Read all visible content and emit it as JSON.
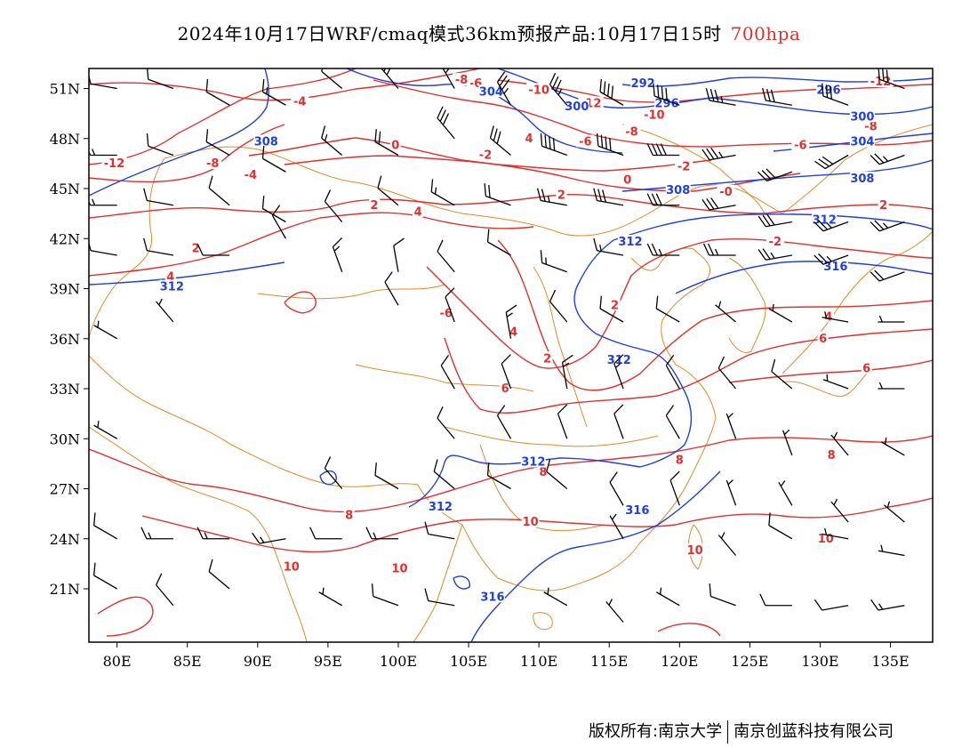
{
  "title": {
    "main": "2024年10月17日WRF/cmaq模式36km预报产品:10月17日15时",
    "level": "700hpa"
  },
  "axes": {
    "lat_labels": [
      "51N",
      "48N",
      "45N",
      "42N",
      "39N",
      "36N",
      "33N",
      "30N",
      "27N",
      "24N",
      "21N"
    ],
    "lat_values": [
      51,
      48,
      45,
      42,
      39,
      36,
      33,
      30,
      27,
      24,
      21
    ],
    "lon_labels": [
      "80E",
      "85E",
      "90E",
      "95E",
      "100E",
      "105E",
      "110E",
      "115E",
      "120E",
      "125E",
      "130E",
      "135E"
    ],
    "lon_values": [
      80,
      85,
      90,
      95,
      100,
      105,
      110,
      115,
      120,
      125,
      130,
      135
    ],
    "lon_range": [
      78,
      138
    ],
    "lat_range": [
      17.8,
      52.2
    ]
  },
  "colors": {
    "temperature_contour": "#e0302e",
    "height_contour": "#1f3fe0",
    "boundary": "#e08a2a",
    "wind_barb": "#000000",
    "level_text": "#e0302e"
  },
  "temperature_labels": [
    {
      "text": "-12",
      "lon": 79.8,
      "lat": 46.5
    },
    {
      "text": "-8",
      "lon": 86.8,
      "lat": 46.5
    },
    {
      "text": "-4",
      "lon": 93.0,
      "lat": 50.2
    },
    {
      "text": "-4",
      "lon": 89.5,
      "lat": 45.8
    },
    {
      "text": "0",
      "lon": 99.8,
      "lat": 47.6
    },
    {
      "text": "-2",
      "lon": 106.2,
      "lat": 47.0
    },
    {
      "text": "4",
      "lon": 109.3,
      "lat": 48.0
    },
    {
      "text": "-6",
      "lon": 105.5,
      "lat": 51.3
    },
    {
      "text": "-8",
      "lon": 104.5,
      "lat": 51.5
    },
    {
      "text": "-10",
      "lon": 110.0,
      "lat": 50.9
    },
    {
      "text": "-12",
      "lon": 113.7,
      "lat": 50.1
    },
    {
      "text": "-10",
      "lon": 118.2,
      "lat": 49.4
    },
    {
      "text": "-8",
      "lon": 116.6,
      "lat": 48.4
    },
    {
      "text": "-6",
      "lon": 113.3,
      "lat": 47.8
    },
    {
      "text": "-2",
      "lon": 120.3,
      "lat": 46.3
    },
    {
      "text": "0",
      "lon": 116.3,
      "lat": 45.5
    },
    {
      "text": "-0",
      "lon": 123.3,
      "lat": 44.8
    },
    {
      "text": "-6",
      "lon": 128.6,
      "lat": 47.6
    },
    {
      "text": "-8",
      "lon": 133.6,
      "lat": 48.7
    },
    {
      "text": "-12",
      "lon": 134.3,
      "lat": 51.4
    },
    {
      "text": "2",
      "lon": 98.3,
      "lat": 44.0
    },
    {
      "text": "4",
      "lon": 101.4,
      "lat": 43.6
    },
    {
      "text": "2",
      "lon": 111.6,
      "lat": 44.6
    },
    {
      "text": "2",
      "lon": 85.6,
      "lat": 41.4
    },
    {
      "text": "4",
      "lon": 83.8,
      "lat": 39.7
    },
    {
      "text": "-2",
      "lon": 126.8,
      "lat": 41.8
    },
    {
      "text": "2",
      "lon": 134.5,
      "lat": 44.0
    },
    {
      "text": "-6",
      "lon": 103.4,
      "lat": 37.5
    },
    {
      "text": "4",
      "lon": 108.2,
      "lat": 36.4
    },
    {
      "text": "2",
      "lon": 115.4,
      "lat": 38.0
    },
    {
      "text": "2",
      "lon": 110.6,
      "lat": 34.8
    },
    {
      "text": "6",
      "lon": 107.6,
      "lat": 33.0
    },
    {
      "text": "4",
      "lon": 130.6,
      "lat": 37.3
    },
    {
      "text": "6",
      "lon": 130.2,
      "lat": 36.0
    },
    {
      "text": "6",
      "lon": 133.3,
      "lat": 34.2
    },
    {
      "text": "8",
      "lon": 110.3,
      "lat": 28.0
    },
    {
      "text": "8",
      "lon": 120.0,
      "lat": 28.7
    },
    {
      "text": "8",
      "lon": 130.8,
      "lat": 29.0
    },
    {
      "text": "8",
      "lon": 96.5,
      "lat": 25.4
    },
    {
      "text": "10",
      "lon": 109.4,
      "lat": 25.0
    },
    {
      "text": "10",
      "lon": 121.1,
      "lat": 23.3
    },
    {
      "text": "10",
      "lon": 130.4,
      "lat": 24.0
    },
    {
      "text": "10",
      "lon": 92.4,
      "lat": 22.3
    },
    {
      "text": "10",
      "lon": 100.1,
      "lat": 22.2
    }
  ],
  "height_labels": [
    {
      "text": "308",
      "lon": 90.6,
      "lat": 47.8
    },
    {
      "text": "304",
      "lon": 106.6,
      "lat": 50.8
    },
    {
      "text": "300",
      "lon": 112.7,
      "lat": 49.9
    },
    {
      "text": "292",
      "lon": 117.4,
      "lat": 51.3
    },
    {
      "text": "296",
      "lon": 119.1,
      "lat": 50.1
    },
    {
      "text": "296",
      "lon": 130.6,
      "lat": 50.9
    },
    {
      "text": "300",
      "lon": 133.0,
      "lat": 49.3
    },
    {
      "text": "304",
      "lon": 133.0,
      "lat": 47.8
    },
    {
      "text": "308",
      "lon": 133.0,
      "lat": 45.6
    },
    {
      "text": "308",
      "lon": 119.9,
      "lat": 44.9
    },
    {
      "text": "312",
      "lon": 130.3,
      "lat": 43.1
    },
    {
      "text": "312",
      "lon": 116.5,
      "lat": 41.8
    },
    {
      "text": "316",
      "lon": 131.1,
      "lat": 40.3
    },
    {
      "text": "312",
      "lon": 83.9,
      "lat": 39.1
    },
    {
      "text": "312",
      "lon": 115.7,
      "lat": 34.7
    },
    {
      "text": "312",
      "lon": 109.6,
      "lat": 28.6
    },
    {
      "text": "312",
      "lon": 103.0,
      "lat": 25.9
    },
    {
      "text": "316",
      "lon": 117.0,
      "lat": 25.7
    },
    {
      "text": "316",
      "lon": 106.7,
      "lat": 20.5
    }
  ],
  "wind_barbs": [
    {
      "lon": 80,
      "lat": 51,
      "dir": 280,
      "spd": 10
    },
    {
      "lon": 84,
      "lat": 51,
      "dir": 290,
      "spd": 10
    },
    {
      "lon": 88,
      "lat": 50,
      "dir": 300,
      "spd": 10
    },
    {
      "lon": 92,
      "lat": 50,
      "dir": 300,
      "spd": 15
    },
    {
      "lon": 96,
      "lat": 51,
      "dir": 310,
      "spd": 10
    },
    {
      "lon": 100,
      "lat": 51,
      "dir": 320,
      "spd": 25
    },
    {
      "lon": 104,
      "lat": 51,
      "dir": 330,
      "spd": 30
    },
    {
      "lon": 108,
      "lat": 50,
      "dir": 330,
      "spd": 35
    },
    {
      "lon": 112,
      "lat": 50,
      "dir": 320,
      "spd": 35
    },
    {
      "lon": 116,
      "lat": 50,
      "dir": 300,
      "spd": 40
    },
    {
      "lon": 120,
      "lat": 50,
      "dir": 290,
      "spd": 40
    },
    {
      "lon": 124,
      "lat": 50,
      "dir": 280,
      "spd": 35
    },
    {
      "lon": 128,
      "lat": 50,
      "dir": 280,
      "spd": 30
    },
    {
      "lon": 132,
      "lat": 50,
      "dir": 290,
      "spd": 30
    },
    {
      "lon": 136,
      "lat": 51,
      "dir": 290,
      "spd": 30
    },
    {
      "lon": 80,
      "lat": 47,
      "dir": 270,
      "spd": 15
    },
    {
      "lon": 84,
      "lat": 47,
      "dir": 290,
      "spd": 10
    },
    {
      "lon": 88,
      "lat": 47,
      "dir": 300,
      "spd": 10
    },
    {
      "lon": 92,
      "lat": 46,
      "dir": 300,
      "spd": 10
    },
    {
      "lon": 96,
      "lat": 47,
      "dir": 310,
      "spd": 15
    },
    {
      "lon": 100,
      "lat": 47,
      "dir": 300,
      "spd": 20
    },
    {
      "lon": 104,
      "lat": 48,
      "dir": 320,
      "spd": 30
    },
    {
      "lon": 108,
      "lat": 47,
      "dir": 310,
      "spd": 30
    },
    {
      "lon": 112,
      "lat": 47,
      "dir": 290,
      "spd": 40
    },
    {
      "lon": 116,
      "lat": 47,
      "dir": 290,
      "spd": 40
    },
    {
      "lon": 120,
      "lat": 47,
      "dir": 270,
      "spd": 40
    },
    {
      "lon": 124,
      "lat": 47,
      "dir": 260,
      "spd": 35
    },
    {
      "lon": 128,
      "lat": 46,
      "dir": 250,
      "spd": 30
    },
    {
      "lon": 132,
      "lat": 47,
      "dir": 240,
      "spd": 30
    },
    {
      "lon": 136,
      "lat": 47,
      "dir": 250,
      "spd": 25
    },
    {
      "lon": 80,
      "lat": 44,
      "dir": 270,
      "spd": 15
    },
    {
      "lon": 84,
      "lat": 44,
      "dir": 280,
      "spd": 10
    },
    {
      "lon": 88,
      "lat": 44,
      "dir": 310,
      "spd": 10
    },
    {
      "lon": 92,
      "lat": 43,
      "dir": 300,
      "spd": 10
    },
    {
      "lon": 96,
      "lat": 43,
      "dir": 320,
      "spd": 10
    },
    {
      "lon": 100,
      "lat": 44,
      "dir": 310,
      "spd": 10
    },
    {
      "lon": 104,
      "lat": 44,
      "dir": 300,
      "spd": 15
    },
    {
      "lon": 108,
      "lat": 44,
      "dir": 290,
      "spd": 20
    },
    {
      "lon": 112,
      "lat": 44,
      "dir": 280,
      "spd": 25
    },
    {
      "lon": 116,
      "lat": 44,
      "dir": 280,
      "spd": 30
    },
    {
      "lon": 120,
      "lat": 44,
      "dir": 270,
      "spd": 30
    },
    {
      "lon": 124,
      "lat": 44,
      "dir": 260,
      "spd": 30
    },
    {
      "lon": 128,
      "lat": 43,
      "dir": 260,
      "spd": 30
    },
    {
      "lon": 132,
      "lat": 43,
      "dir": 250,
      "spd": 25
    },
    {
      "lon": 136,
      "lat": 43,
      "dir": 250,
      "spd": 25
    },
    {
      "lon": 80,
      "lat": 41,
      "dir": 280,
      "spd": 10
    },
    {
      "lon": 84,
      "lat": 41,
      "dir": 280,
      "spd": 10
    },
    {
      "lon": 88,
      "lat": 41,
      "dir": 270,
      "spd": 10
    },
    {
      "lon": 92,
      "lat": 42,
      "dir": 330,
      "spd": 10
    },
    {
      "lon": 96,
      "lat": 40,
      "dir": 340,
      "spd": 15
    },
    {
      "lon": 100,
      "lat": 40,
      "dir": 350,
      "spd": 10
    },
    {
      "lon": 104,
      "lat": 40,
      "dir": 320,
      "spd": 10
    },
    {
      "lon": 108,
      "lat": 41,
      "dir": 300,
      "spd": 10
    },
    {
      "lon": 112,
      "lat": 40,
      "dir": 290,
      "spd": 15
    },
    {
      "lon": 116,
      "lat": 41,
      "dir": 280,
      "spd": 15
    },
    {
      "lon": 120,
      "lat": 41,
      "dir": 270,
      "spd": 25
    },
    {
      "lon": 124,
      "lat": 41,
      "dir": 270,
      "spd": 25
    },
    {
      "lon": 128,
      "lat": 41,
      "dir": 260,
      "spd": 25
    },
    {
      "lon": 132,
      "lat": 41,
      "dir": 250,
      "spd": 25
    },
    {
      "lon": 136,
      "lat": 40,
      "dir": 250,
      "spd": 20
    },
    {
      "lon": 80,
      "lat": 36,
      "dir": 300,
      "spd": 5
    },
    {
      "lon": 84,
      "lat": 37,
      "dir": 320,
      "spd": 5
    },
    {
      "lon": 100,
      "lat": 38,
      "dir": 330,
      "spd": 10
    },
    {
      "lon": 104,
      "lat": 37,
      "dir": 340,
      "spd": 10
    },
    {
      "lon": 108,
      "lat": 36,
      "dir": 350,
      "spd": 15
    },
    {
      "lon": 112,
      "lat": 37,
      "dir": 320,
      "spd": 10
    },
    {
      "lon": 116,
      "lat": 37,
      "dir": 300,
      "spd": 10
    },
    {
      "lon": 120,
      "lat": 37,
      "dir": 300,
      "spd": 10
    },
    {
      "lon": 124,
      "lat": 37,
      "dir": 310,
      "spd": 5
    },
    {
      "lon": 128,
      "lat": 37,
      "dir": 300,
      "spd": 5
    },
    {
      "lon": 132,
      "lat": 37,
      "dir": 280,
      "spd": 5
    },
    {
      "lon": 136,
      "lat": 37,
      "dir": 270,
      "spd": 5
    },
    {
      "lon": 104,
      "lat": 33,
      "dir": 330,
      "spd": 10
    },
    {
      "lon": 108,
      "lat": 33,
      "dir": 340,
      "spd": 10
    },
    {
      "lon": 112,
      "lat": 33,
      "dir": 350,
      "spd": 15
    },
    {
      "lon": 116,
      "lat": 33,
      "dir": 340,
      "spd": 15
    },
    {
      "lon": 120,
      "lat": 33,
      "dir": 330,
      "spd": 10
    },
    {
      "lon": 124,
      "lat": 33,
      "dir": 320,
      "spd": 10
    },
    {
      "lon": 128,
      "lat": 33,
      "dir": 310,
      "spd": 10
    },
    {
      "lon": 132,
      "lat": 33,
      "dir": 290,
      "spd": 5
    },
    {
      "lon": 136,
      "lat": 33,
      "dir": 270,
      "spd": 5
    },
    {
      "lon": 80,
      "lat": 30,
      "dir": 300,
      "spd": 5
    },
    {
      "lon": 104,
      "lat": 30,
      "dir": 320,
      "spd": 10
    },
    {
      "lon": 108,
      "lat": 30,
      "dir": 330,
      "spd": 10
    },
    {
      "lon": 112,
      "lat": 30,
      "dir": 340,
      "spd": 10
    },
    {
      "lon": 116,
      "lat": 30,
      "dir": 340,
      "spd": 10
    },
    {
      "lon": 120,
      "lat": 30,
      "dir": 330,
      "spd": 10
    },
    {
      "lon": 124,
      "lat": 30,
      "dir": 340,
      "spd": 5
    },
    {
      "lon": 128,
      "lat": 29,
      "dir": 340,
      "spd": 5
    },
    {
      "lon": 132,
      "lat": 29,
      "dir": 320,
      "spd": 5
    },
    {
      "lon": 136,
      "lat": 29,
      "dir": 300,
      "spd": 5
    },
    {
      "lon": 96,
      "lat": 27,
      "dir": 320,
      "spd": 10
    },
    {
      "lon": 100,
      "lat": 27,
      "dir": 300,
      "spd": 10
    },
    {
      "lon": 104,
      "lat": 27,
      "dir": 310,
      "spd": 10
    },
    {
      "lon": 108,
      "lat": 27,
      "dir": 300,
      "spd": 10
    },
    {
      "lon": 112,
      "lat": 27,
      "dir": 310,
      "spd": 10
    },
    {
      "lon": 116,
      "lat": 26,
      "dir": 330,
      "spd": 10
    },
    {
      "lon": 120,
      "lat": 26,
      "dir": 340,
      "spd": 10
    },
    {
      "lon": 124,
      "lat": 26,
      "dir": 340,
      "spd": 5
    },
    {
      "lon": 128,
      "lat": 26,
      "dir": 330,
      "spd": 5
    },
    {
      "lon": 132,
      "lat": 25,
      "dir": 320,
      "spd": 5
    },
    {
      "lon": 136,
      "lat": 25,
      "dir": 310,
      "spd": 5
    },
    {
      "lon": 80,
      "lat": 24,
      "dir": 300,
      "spd": 10
    },
    {
      "lon": 84,
      "lat": 24,
      "dir": 270,
      "spd": 15
    },
    {
      "lon": 88,
      "lat": 24,
      "dir": 270,
      "spd": 15
    },
    {
      "lon": 92,
      "lat": 24,
      "dir": 260,
      "spd": 15
    },
    {
      "lon": 96,
      "lat": 24,
      "dir": 270,
      "spd": 10
    },
    {
      "lon": 100,
      "lat": 24,
      "dir": 270,
      "spd": 15
    },
    {
      "lon": 104,
      "lat": 24,
      "dir": 280,
      "spd": 10
    },
    {
      "lon": 116,
      "lat": 24,
      "dir": 330,
      "spd": 5
    },
    {
      "lon": 124,
      "lat": 23,
      "dir": 320,
      "spd": 5
    },
    {
      "lon": 128,
      "lat": 24,
      "dir": 300,
      "spd": 10
    },
    {
      "lon": 132,
      "lat": 24,
      "dir": 280,
      "spd": 5
    },
    {
      "lon": 136,
      "lat": 23,
      "dir": 280,
      "spd": 5
    },
    {
      "lon": 80,
      "lat": 21,
      "dir": 300,
      "spd": 10
    },
    {
      "lon": 84,
      "lat": 20,
      "dir": 320,
      "spd": 10
    },
    {
      "lon": 88,
      "lat": 21,
      "dir": 310,
      "spd": 10
    },
    {
      "lon": 96,
      "lat": 20,
      "dir": 300,
      "spd": 5
    },
    {
      "lon": 100,
      "lat": 20,
      "dir": 290,
      "spd": 10
    },
    {
      "lon": 104,
      "lat": 20,
      "dir": 280,
      "spd": 10
    },
    {
      "lon": 112,
      "lat": 20,
      "dir": 300,
      "spd": 5
    },
    {
      "lon": 116,
      "lat": 19,
      "dir": 320,
      "spd": 5
    },
    {
      "lon": 120,
      "lat": 20,
      "dir": 300,
      "spd": 5
    },
    {
      "lon": 124,
      "lat": 20,
      "dir": 290,
      "spd": 10
    },
    {
      "lon": 128,
      "lat": 20,
      "dir": 270,
      "spd": 10
    },
    {
      "lon": 132,
      "lat": 20,
      "dir": 260,
      "spd": 10
    },
    {
      "lon": 136,
      "lat": 20,
      "dir": 260,
      "spd": 15
    }
  ],
  "copyright": {
    "prefix": "版权所有:南京大学",
    "company": "南京创蓝科技有限公司"
  }
}
